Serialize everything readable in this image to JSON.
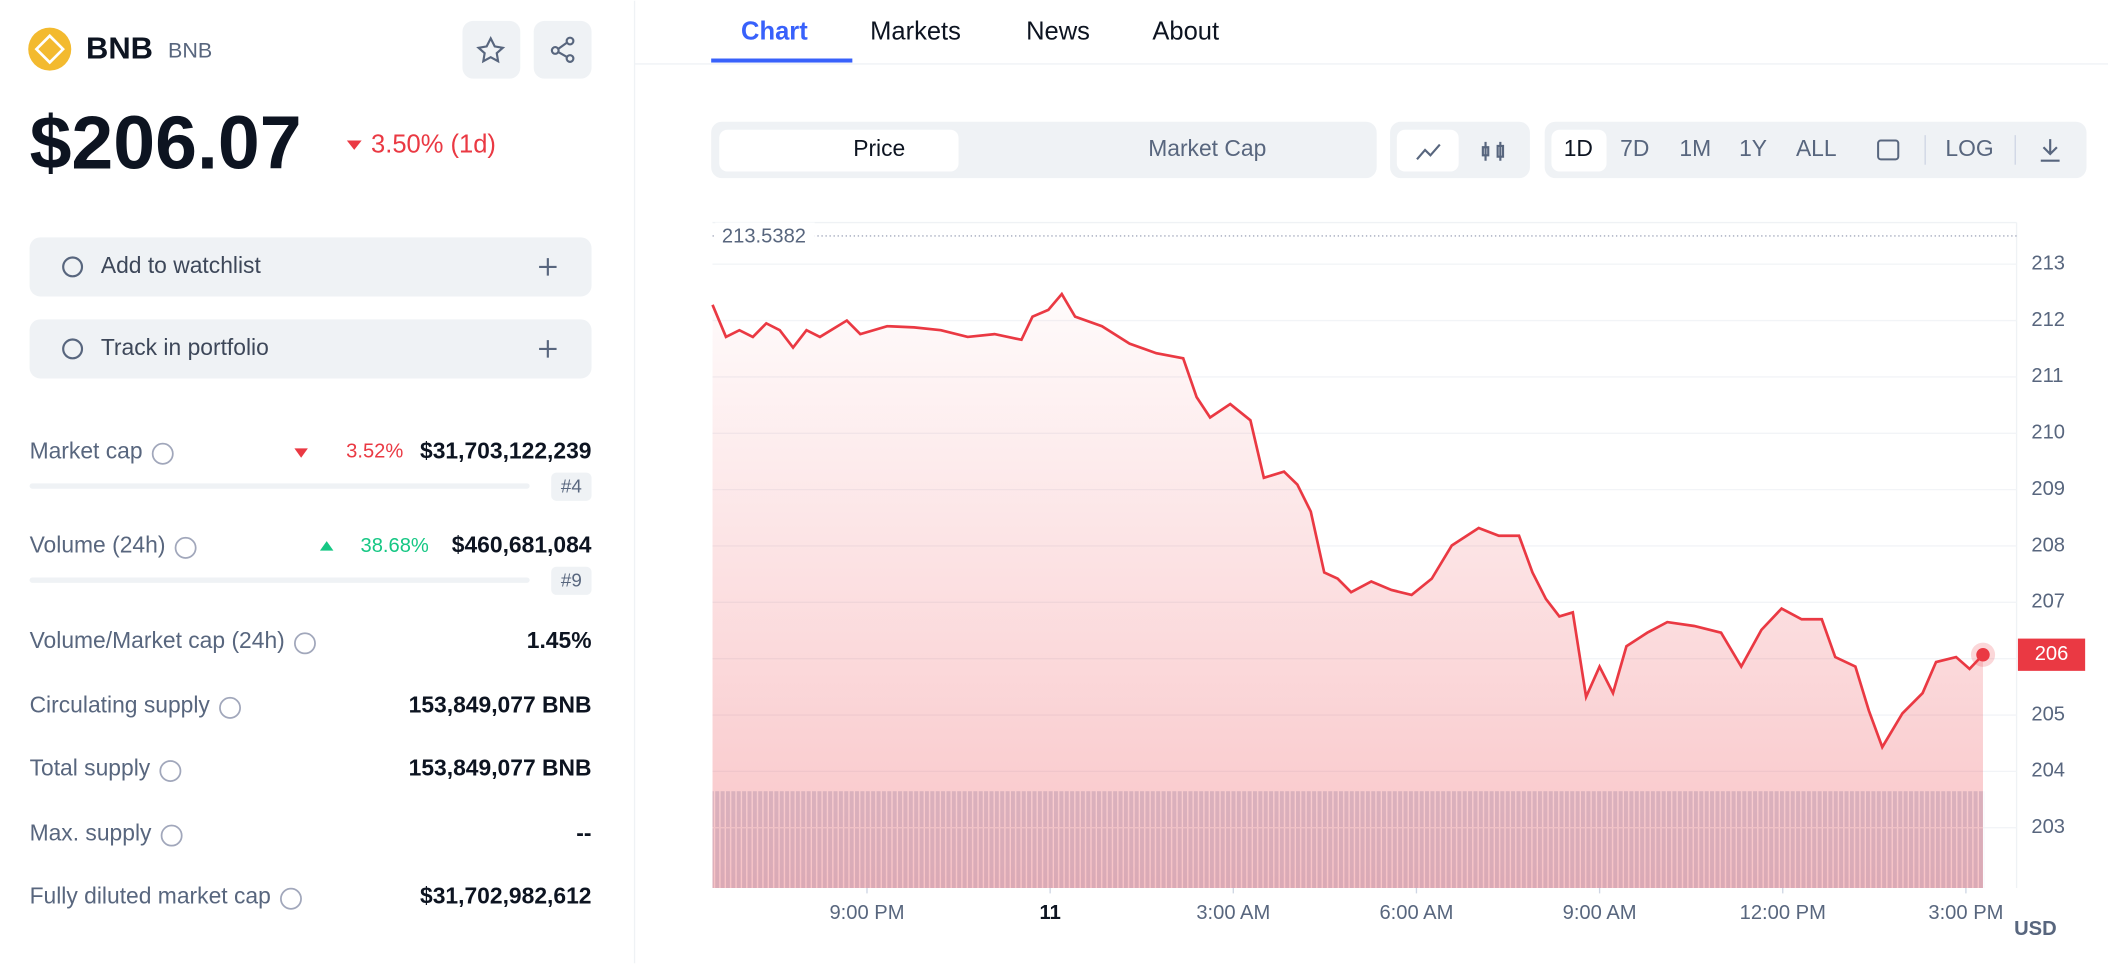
{
  "coin": {
    "name": "BNB",
    "symbol": "BNB",
    "price": "$206.07",
    "change": "3.50% (1d)"
  },
  "actions": [
    "Add to watchlist",
    "Track in portfolio"
  ],
  "stats": [
    {
      "label": "Market cap",
      "change": "3.52%",
      "direction": "down",
      "value": "$31,703,122,239",
      "rank": "#4"
    },
    {
      "label": "Volume (24h)",
      "change": "38.68%",
      "direction": "up",
      "value": "$460,681,084",
      "rank": "#9"
    },
    {
      "label": "Volume/Market cap (24h)",
      "value": "1.45%"
    },
    {
      "label": "Circulating supply",
      "value": "153,849,077 BNB"
    },
    {
      "label": "Total supply",
      "value": "153,849,077 BNB"
    },
    {
      "label": "Max. supply",
      "value": "--"
    },
    {
      "label": "Fully diluted market cap",
      "value": "$31,702,982,612"
    }
  ],
  "tabs": [
    "Chart",
    "Markets",
    "News",
    "About"
  ],
  "toggles": [
    "Price",
    "Market Cap"
  ],
  "ranges": [
    "1D",
    "7D",
    "1M",
    "1Y",
    "ALL",
    "LOG"
  ],
  "chart_data": {
    "type": "line",
    "high_label": "213.5382",
    "last_label": "206",
    "unit": "USD",
    "color": "#ea3943",
    "x": [
      -2.53,
      -2.31,
      -2.09,
      -1.87,
      -1.65,
      -1.43,
      -1.21,
      -0.99,
      -0.77,
      -0.33,
      -0.11,
      0.33,
      0.77,
      1.21,
      1.65,
      2.09,
      2.53,
      2.71,
      2.97,
      3.19,
      3.41,
      3.85,
      4.3,
      4.74,
      5.18,
      5.4,
      5.62,
      5.95,
      6.28,
      6.5,
      6.83,
      7.05,
      7.27,
      7.49,
      7.71,
      7.93,
      8.26,
      8.59,
      8.92,
      9.25,
      9.58,
      10.02,
      10.35,
      10.68,
      10.9,
      11.12,
      11.34,
      11.56,
      11.78,
      12.0,
      12.22,
      12.44,
      12.78,
      13.11,
      13.55,
      13.99,
      14.32,
      14.65,
      14.98,
      15.31,
      15.64,
      15.86,
      16.19,
      16.41,
      16.63,
      16.96,
      17.29,
      17.51,
      17.84,
      18.06,
      18.28
    ],
    "values": [
      212.28,
      211.71,
      211.83,
      211.71,
      211.95,
      211.83,
      211.52,
      211.83,
      211.71,
      212.0,
      211.76,
      211.9,
      211.88,
      211.83,
      211.71,
      211.76,
      211.66,
      212.07,
      212.19,
      212.47,
      212.07,
      211.9,
      211.59,
      211.42,
      211.33,
      210.64,
      210.28,
      210.52,
      210.23,
      209.21,
      209.32,
      209.09,
      208.61,
      207.53,
      207.42,
      207.18,
      207.37,
      207.22,
      207.13,
      207.42,
      208.01,
      208.32,
      208.18,
      208.18,
      207.53,
      207.06,
      206.75,
      206.82,
      205.32,
      205.86,
      205.39,
      206.22,
      206.46,
      206.65,
      206.58,
      206.46,
      205.86,
      206.51,
      206.89,
      206.7,
      206.7,
      206.03,
      205.86,
      205.08,
      204.43,
      205.03,
      205.39,
      205.94,
      206.03,
      205.82,
      206.07
    ],
    "xlim": [
      -2.53,
      18.83
    ],
    "ylim": [
      201.93,
      213.74
    ],
    "xticks": [
      {
        "value": 0,
        "label": "9:00 PM"
      },
      {
        "value": 3,
        "label": "11"
      },
      {
        "value": 6,
        "label": "3:00 AM"
      },
      {
        "value": 9,
        "label": "6:00 AM"
      },
      {
        "value": 12,
        "label": "9:00 AM"
      },
      {
        "value": 15,
        "label": "12:00 PM"
      },
      {
        "value": 18,
        "label": "3:00 PM"
      }
    ],
    "yticks": [
      203,
      204,
      205,
      206,
      207,
      208,
      209,
      210,
      211,
      212,
      213
    ]
  }
}
